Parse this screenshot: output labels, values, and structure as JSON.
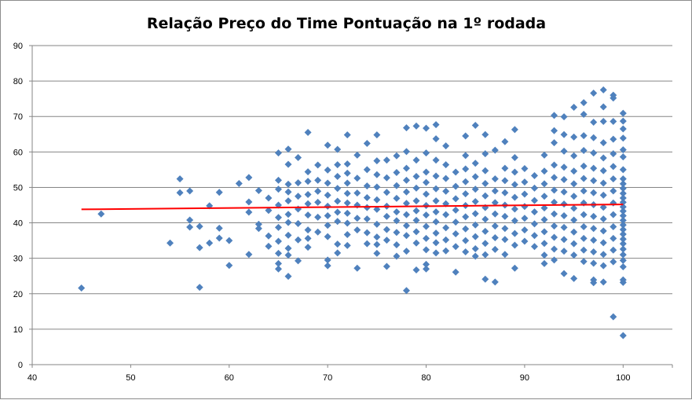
{
  "chart_data": {
    "type": "scatter",
    "title": "Relação Preço do Time Pontuação na 1º rodada",
    "xlabel": "",
    "ylabel": "",
    "xlim": [
      40,
      105
    ],
    "ylim": [
      0,
      90
    ],
    "x_ticks": [
      "40",
      "50",
      "60",
      "70",
      "80",
      "90",
      "100"
    ],
    "y_ticks": [
      "0",
      "10",
      "20",
      "30",
      "40",
      "50",
      "60",
      "70",
      "80",
      "90"
    ],
    "grid": "horizontal",
    "legend": "none",
    "marker": "diamond",
    "marker_color": "#4f81bd",
    "trendline": {
      "color": "#ff0000",
      "x": [
        45,
        100
      ],
      "y": [
        43.8,
        45.2
      ]
    },
    "points": [
      [
        45,
        21.6
      ],
      [
        47,
        42.5
      ],
      [
        54,
        34.3
      ],
      [
        55,
        52.4
      ],
      [
        55,
        48.5
      ],
      [
        56,
        49.0
      ],
      [
        56,
        40.8
      ],
      [
        56,
        38.8
      ],
      [
        57,
        33.0
      ],
      [
        57,
        39.0
      ],
      [
        57,
        21.8
      ],
      [
        58,
        44.8
      ],
      [
        58,
        34.3
      ],
      [
        59,
        48.6
      ],
      [
        59,
        38.5
      ],
      [
        59,
        35.7
      ],
      [
        60,
        35.0
      ],
      [
        60,
        28.0
      ],
      [
        61,
        51.1
      ],
      [
        62,
        52.8
      ],
      [
        62,
        45.9
      ],
      [
        62,
        43.0
      ],
      [
        62,
        31.1
      ],
      [
        63,
        49.1
      ],
      [
        63,
        39.6
      ],
      [
        63,
        38.4
      ],
      [
        64,
        47.0
      ],
      [
        64,
        43.5
      ],
      [
        64,
        36.3
      ],
      [
        64,
        33.4
      ],
      [
        65,
        59.7
      ],
      [
        65,
        52.0
      ],
      [
        65,
        49.5
      ],
      [
        65,
        45.0
      ],
      [
        65,
        41.5
      ],
      [
        65,
        38.7
      ],
      [
        65,
        34.8
      ],
      [
        65,
        31.4
      ],
      [
        65,
        28.5
      ],
      [
        65,
        27.0
      ],
      [
        66,
        60.8
      ],
      [
        66,
        56.5
      ],
      [
        66,
        50.9
      ],
      [
        66,
        48.7
      ],
      [
        66,
        46.2
      ],
      [
        66,
        42.4
      ],
      [
        66,
        40.1
      ],
      [
        66,
        36.5
      ],
      [
        66,
        32.8
      ],
      [
        66,
        30.9
      ],
      [
        66,
        24.9
      ],
      [
        67,
        58.4
      ],
      [
        67,
        51.3
      ],
      [
        67,
        47.5
      ],
      [
        67,
        43.9
      ],
      [
        67,
        39.8
      ],
      [
        67,
        35.2
      ],
      [
        67,
        29.3
      ],
      [
        68,
        65.5
      ],
      [
        68,
        54.4
      ],
      [
        68,
        51.7
      ],
      [
        68,
        48.0
      ],
      [
        68,
        45.4
      ],
      [
        68,
        42.2
      ],
      [
        68,
        38.0
      ],
      [
        68,
        35.6
      ],
      [
        68,
        33.1
      ],
      [
        69,
        56.3
      ],
      [
        69,
        52.0
      ],
      [
        69,
        48.9
      ],
      [
        69,
        45.8
      ],
      [
        69,
        41.6
      ],
      [
        69,
        37.4
      ],
      [
        70,
        61.9
      ],
      [
        70,
        54.9
      ],
      [
        70,
        51.2
      ],
      [
        70,
        47.8
      ],
      [
        70,
        44.7
      ],
      [
        70,
        42.0
      ],
      [
        70,
        39.3
      ],
      [
        70,
        36.1
      ],
      [
        70,
        29.5
      ],
      [
        70,
        27.9
      ],
      [
        71,
        60.7
      ],
      [
        71,
        56.4
      ],
      [
        71,
        53.1
      ],
      [
        71,
        49.7
      ],
      [
        71,
        46.1
      ],
      [
        71,
        43.0
      ],
      [
        71,
        40.4
      ],
      [
        71,
        34.0
      ],
      [
        71,
        31.5
      ],
      [
        72,
        64.8
      ],
      [
        72,
        56.6
      ],
      [
        72,
        54.0
      ],
      [
        72,
        51.2
      ],
      [
        72,
        48.3
      ],
      [
        72,
        45.6
      ],
      [
        72,
        42.7
      ],
      [
        72,
        39.9
      ],
      [
        72,
        36.7
      ],
      [
        72,
        33.6
      ],
      [
        73,
        59.1
      ],
      [
        73,
        52.6
      ],
      [
        73,
        48.4
      ],
      [
        73,
        45.0
      ],
      [
        73,
        41.3
      ],
      [
        73,
        38.0
      ],
      [
        73,
        27.2
      ],
      [
        74,
        62.4
      ],
      [
        74,
        55.0
      ],
      [
        74,
        50.4
      ],
      [
        74,
        47.1
      ],
      [
        74,
        44.3
      ],
      [
        74,
        41.1
      ],
      [
        74,
        37.2
      ],
      [
        74,
        34.1
      ],
      [
        75,
        64.8
      ],
      [
        75,
        57.5
      ],
      [
        75,
        53.6
      ],
      [
        75,
        50.1
      ],
      [
        75,
        46.5
      ],
      [
        75,
        43.8
      ],
      [
        75,
        39.6
      ],
      [
        75,
        36.0
      ],
      [
        75,
        33.9
      ],
      [
        75,
        31.4
      ],
      [
        76,
        57.7
      ],
      [
        76,
        52.7
      ],
      [
        76,
        48.6
      ],
      [
        76,
        44.7
      ],
      [
        76,
        41.8
      ],
      [
        76,
        38.1
      ],
      [
        76,
        35.1
      ],
      [
        76,
        27.7
      ],
      [
        77,
        58.9
      ],
      [
        77,
        54.2
      ],
      [
        77,
        50.5
      ],
      [
        77,
        46.9
      ],
      [
        77,
        43.1
      ],
      [
        77,
        40.6
      ],
      [
        77,
        37.3
      ],
      [
        77,
        33.8
      ],
      [
        77,
        30.6
      ],
      [
        78,
        66.8
      ],
      [
        78,
        60.1
      ],
      [
        78,
        55.4
      ],
      [
        78,
        52.0
      ],
      [
        78,
        48.7
      ],
      [
        78,
        45.5
      ],
      [
        78,
        42.3
      ],
      [
        78,
        39.2
      ],
      [
        78,
        36.4
      ],
      [
        78,
        32.0
      ],
      [
        78,
        20.9
      ],
      [
        79,
        67.3
      ],
      [
        79,
        57.7
      ],
      [
        79,
        53.1
      ],
      [
        79,
        49.8
      ],
      [
        79,
        46.2
      ],
      [
        79,
        43.4
      ],
      [
        79,
        40.7
      ],
      [
        79,
        37.5
      ],
      [
        79,
        34.3
      ],
      [
        79,
        26.7
      ],
      [
        80,
        66.7
      ],
      [
        80,
        59.7
      ],
      [
        80,
        54.3
      ],
      [
        80,
        51.4
      ],
      [
        80,
        48.1
      ],
      [
        80,
        44.9
      ],
      [
        80,
        42.2
      ],
      [
        80,
        39.0
      ],
      [
        80,
        35.6
      ],
      [
        80,
        32.4
      ],
      [
        80,
        28.3
      ],
      [
        80,
        27.0
      ],
      [
        81,
        67.7
      ],
      [
        81,
        63.7
      ],
      [
        81,
        57.7
      ],
      [
        81,
        53.2
      ],
      [
        81,
        49.6
      ],
      [
        81,
        46.2
      ],
      [
        81,
        43.1
      ],
      [
        81,
        40.3
      ],
      [
        81,
        37.1
      ],
      [
        81,
        34.4
      ],
      [
        81,
        31.5
      ],
      [
        82,
        61.7
      ],
      [
        82,
        56.4
      ],
      [
        82,
        52.5
      ],
      [
        82,
        48.9
      ],
      [
        82,
        45.4
      ],
      [
        82,
        42.3
      ],
      [
        82,
        38.6
      ],
      [
        82,
        35.2
      ],
      [
        82,
        32.1
      ],
      [
        83,
        54.3
      ],
      [
        83,
        50.3
      ],
      [
        83,
        46.8
      ],
      [
        83,
        43.6
      ],
      [
        83,
        40.2
      ],
      [
        83,
        36.9
      ],
      [
        83,
        33.3
      ],
      [
        83,
        26.1
      ],
      [
        84,
        64.5
      ],
      [
        84,
        59.0
      ],
      [
        84,
        55.2
      ],
      [
        84,
        51.6
      ],
      [
        84,
        48.2
      ],
      [
        84,
        44.9
      ],
      [
        84,
        41.7
      ],
      [
        84,
        38.3
      ],
      [
        84,
        35.0
      ],
      [
        84,
        31.8
      ],
      [
        85,
        67.5
      ],
      [
        85,
        56.8
      ],
      [
        85,
        53.0
      ],
      [
        85,
        49.5
      ],
      [
        85,
        46.0
      ],
      [
        85,
        42.6
      ],
      [
        85,
        39.4
      ],
      [
        85,
        36.1
      ],
      [
        85,
        32.7
      ],
      [
        85,
        30.6
      ],
      [
        86,
        64.9
      ],
      [
        86,
        59.5
      ],
      [
        86,
        54.7
      ],
      [
        86,
        51.1
      ],
      [
        86,
        47.6
      ],
      [
        86,
        44.3
      ],
      [
        86,
        41.0
      ],
      [
        86,
        37.6
      ],
      [
        86,
        34.2
      ],
      [
        86,
        31.0
      ],
      [
        86,
        24.1
      ],
      [
        87,
        60.5
      ],
      [
        87,
        52.4
      ],
      [
        87,
        49.0
      ],
      [
        87,
        45.7
      ],
      [
        87,
        42.5
      ],
      [
        87,
        39.1
      ],
      [
        87,
        35.8
      ],
      [
        87,
        32.5
      ],
      [
        87,
        23.3
      ],
      [
        88,
        62.9
      ],
      [
        88,
        55.4
      ],
      [
        88,
        51.9
      ],
      [
        88,
        48.5
      ],
      [
        88,
        45.0
      ],
      [
        88,
        41.8
      ],
      [
        88,
        38.4
      ],
      [
        88,
        35.3
      ],
      [
        88,
        31.1
      ],
      [
        89,
        66.3
      ],
      [
        89,
        58.4
      ],
      [
        89,
        54.3
      ],
      [
        89,
        50.8
      ],
      [
        89,
        47.2
      ],
      [
        89,
        43.9
      ],
      [
        89,
        40.6
      ],
      [
        89,
        37.0
      ],
      [
        89,
        33.7
      ],
      [
        89,
        27.2
      ],
      [
        90,
        55.3
      ],
      [
        90,
        51.5
      ],
      [
        90,
        48.1
      ],
      [
        90,
        44.6
      ],
      [
        90,
        41.3
      ],
      [
        90,
        38.0
      ],
      [
        90,
        34.8
      ],
      [
        91,
        53.3
      ],
      [
        91,
        49.8
      ],
      [
        91,
        46.3
      ],
      [
        91,
        43.1
      ],
      [
        91,
        39.7
      ],
      [
        91,
        36.4
      ],
      [
        91,
        33.3
      ],
      [
        92,
        59.1
      ],
      [
        92,
        54.6
      ],
      [
        92,
        51.0
      ],
      [
        92,
        47.5
      ],
      [
        92,
        44.2
      ],
      [
        92,
        40.9
      ],
      [
        92,
        37.5
      ],
      [
        92,
        34.2
      ],
      [
        92,
        30.9
      ],
      [
        92,
        28.5
      ],
      [
        93,
        70.3
      ],
      [
        93,
        66.0
      ],
      [
        93,
        62.6
      ],
      [
        93,
        56.3
      ],
      [
        93,
        52.8
      ],
      [
        93,
        49.2
      ],
      [
        93,
        45.8
      ],
      [
        93,
        42.5
      ],
      [
        93,
        39.1
      ],
      [
        93,
        35.9
      ],
      [
        93,
        32.6
      ],
      [
        93,
        29.5
      ],
      [
        94,
        69.9
      ],
      [
        94,
        64.9
      ],
      [
        94,
        60.2
      ],
      [
        94,
        55.7
      ],
      [
        94,
        52.2
      ],
      [
        94,
        48.7
      ],
      [
        94,
        45.3
      ],
      [
        94,
        42.0
      ],
      [
        94,
        38.7
      ],
      [
        94,
        35.3
      ],
      [
        94,
        32.0
      ],
      [
        94,
        25.7
      ],
      [
        95,
        72.6
      ],
      [
        95,
        64.2
      ],
      [
        95,
        58.9
      ],
      [
        95,
        54.6
      ],
      [
        95,
        51.0
      ],
      [
        95,
        47.5
      ],
      [
        95,
        44.1
      ],
      [
        95,
        40.8
      ],
      [
        95,
        37.4
      ],
      [
        95,
        34.1
      ],
      [
        95,
        30.9
      ],
      [
        95,
        24.3
      ],
      [
        96,
        73.9
      ],
      [
        96,
        70.6
      ],
      [
        96,
        64.6
      ],
      [
        96,
        60.4
      ],
      [
        96,
        56.0
      ],
      [
        96,
        52.5
      ],
      [
        96,
        49.0
      ],
      [
        96,
        45.6
      ],
      [
        96,
        42.3
      ],
      [
        96,
        38.9
      ],
      [
        96,
        35.6
      ],
      [
        96,
        32.3
      ],
      [
        96,
        29.1
      ],
      [
        97,
        76.6
      ],
      [
        97,
        68.4
      ],
      [
        97,
        64.0
      ],
      [
        97,
        59.7
      ],
      [
        97,
        55.4
      ],
      [
        97,
        51.9
      ],
      [
        97,
        48.5
      ],
      [
        97,
        45.1
      ],
      [
        97,
        41.8
      ],
      [
        97,
        38.4
      ],
      [
        97,
        35.1
      ],
      [
        97,
        31.8
      ],
      [
        97,
        28.6
      ],
      [
        97,
        23.9
      ],
      [
        97,
        23.1
      ],
      [
        98,
        77.5
      ],
      [
        98,
        72.7
      ],
      [
        98,
        68.6
      ],
      [
        98,
        62.6
      ],
      [
        98,
        58.3
      ],
      [
        98,
        54.7
      ],
      [
        98,
        51.2
      ],
      [
        98,
        47.8
      ],
      [
        98,
        44.4
      ],
      [
        98,
        41.1
      ],
      [
        98,
        37.7
      ],
      [
        98,
        34.4
      ],
      [
        98,
        31.1
      ],
      [
        98,
        27.9
      ],
      [
        98,
        23.3
      ],
      [
        99,
        76.0
      ],
      [
        99,
        75.2
      ],
      [
        99,
        68.6
      ],
      [
        99,
        63.6
      ],
      [
        99,
        59.5
      ],
      [
        99,
        55.9
      ],
      [
        99,
        52.4
      ],
      [
        99,
        49.0
      ],
      [
        99,
        45.6
      ],
      [
        99,
        42.3
      ],
      [
        99,
        38.9
      ],
      [
        99,
        35.6
      ],
      [
        99,
        32.3
      ],
      [
        99,
        29.0
      ],
      [
        99,
        13.5
      ],
      [
        100,
        70.9
      ],
      [
        100,
        68.7
      ],
      [
        100,
        66.5
      ],
      [
        100,
        63.9
      ],
      [
        100,
        60.6
      ],
      [
        100,
        58.6
      ],
      [
        100,
        55.0
      ],
      [
        100,
        52.4
      ],
      [
        100,
        51.0
      ],
      [
        100,
        49.7
      ],
      [
        100,
        48.3
      ],
      [
        100,
        47.0
      ],
      [
        100,
        45.8
      ],
      [
        100,
        44.5
      ],
      [
        100,
        43.3
      ],
      [
        100,
        42.0
      ],
      [
        100,
        40.7
      ],
      [
        100,
        39.4
      ],
      [
        100,
        38.1
      ],
      [
        100,
        36.8
      ],
      [
        100,
        35.4
      ],
      [
        100,
        34.1
      ],
      [
        100,
        32.6
      ],
      [
        100,
        31.0
      ],
      [
        100,
        29.4
      ],
      [
        100,
        27.6
      ],
      [
        100,
        23.9
      ],
      [
        100,
        23.2
      ],
      [
        100,
        8.2
      ]
    ]
  }
}
